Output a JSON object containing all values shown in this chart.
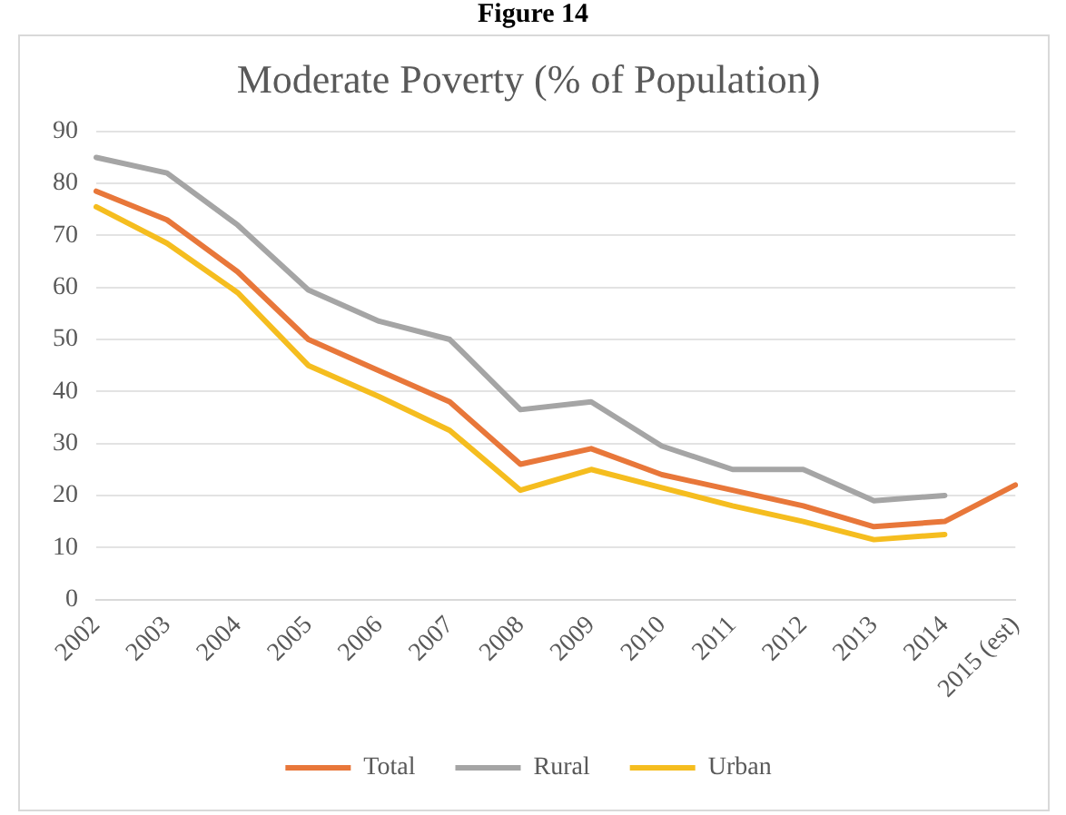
{
  "chart_data": {
    "type": "line",
    "title": "Moderate Poverty (% of Population)",
    "annotations": [
      "Figure 14"
    ],
    "categories": [
      "2002",
      "2003",
      "2004",
      "2005",
      "2006",
      "2007",
      "2008",
      "2009",
      "2010",
      "2011",
      "2012",
      "2013",
      "2014",
      "2015 (est)"
    ],
    "series": [
      {
        "name": "Total",
        "color": "#e8773a",
        "values": [
          78.5,
          73,
          63,
          50,
          44,
          38,
          26,
          29,
          24,
          21,
          18,
          14,
          15,
          22
        ]
      },
      {
        "name": "Rural",
        "color": "#a5a5a5",
        "values": [
          85,
          82,
          72,
          59.5,
          53.5,
          50,
          36.5,
          38,
          29.5,
          25,
          25,
          19,
          20,
          null
        ]
      },
      {
        "name": "Urban",
        "color": "#f5bd1f",
        "values": [
          75.5,
          68.5,
          59,
          45,
          39,
          32.5,
          21,
          25,
          21.5,
          18,
          15,
          11.5,
          12.5,
          null
        ]
      }
    ],
    "ylim": [
      0,
      90
    ],
    "yticks": [
      0,
      10,
      20,
      30,
      40,
      50,
      60,
      70,
      80,
      90
    ],
    "grid": "y",
    "legend": "bottom",
    "marker": "none",
    "line_style": "solid"
  }
}
